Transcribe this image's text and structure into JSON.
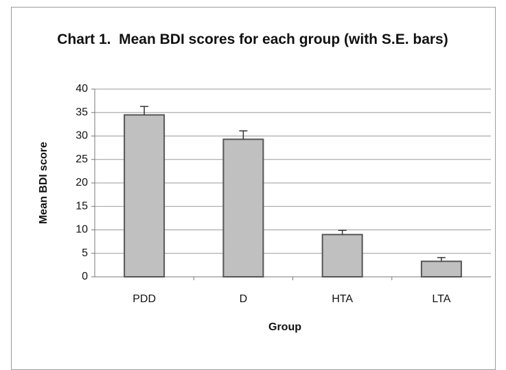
{
  "chart_data": {
    "type": "bar",
    "title": "Chart 1.  Mean BDI scores for each group (with S.E. bars)",
    "categories": [
      "PDD",
      "D",
      "HTA",
      "LTA"
    ],
    "values": [
      34.5,
      29.3,
      9.0,
      3.3
    ],
    "errors": [
      1.8,
      1.8,
      0.9,
      0.8
    ],
    "color": "#c0c0c0",
    "x_label": "Group",
    "y_label": "Mean BDI score",
    "ylim": [
      0,
      40
    ],
    "yticks": [
      0,
      5,
      10,
      15,
      20,
      25,
      30,
      35,
      40
    ],
    "grid": true
  }
}
